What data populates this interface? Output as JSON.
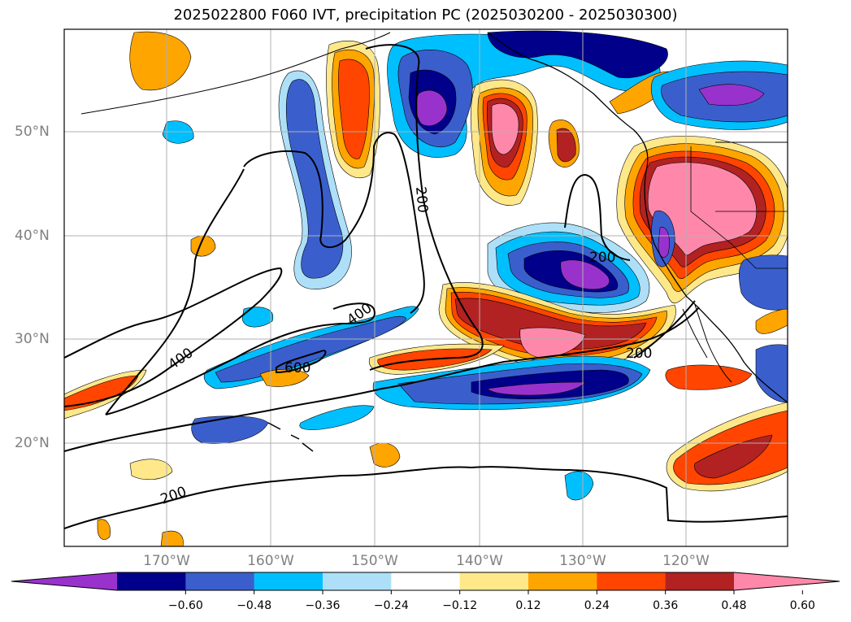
{
  "title": "2025022800 F060 IVT, precipitation PC (2025030200 - 2025030300)",
  "lat_labels": [
    "50°N",
    "40°N",
    "30°N",
    "20°N"
  ],
  "lon_labels": [
    "170°W",
    "160°W",
    "150°W",
    "140°W",
    "130°W",
    "120°W"
  ],
  "contour_labels": [
    "200",
    "200",
    "200",
    "200",
    "400",
    "400",
    "600"
  ],
  "colorbar": {
    "ticks": [
      "−0.60",
      "−0.48",
      "−0.36",
      "−0.24",
      "−0.12",
      "0.12",
      "0.24",
      "0.36",
      "0.48",
      "0.60"
    ],
    "colors": [
      "#9932CC",
      "#00008B",
      "#3A5FCD",
      "#00BFFF",
      "#ADE0F8",
      "#FFFFFF",
      "#FFE88A",
      "#FFA500",
      "#FF4500",
      "#B22222",
      "#FF88AA"
    ]
  },
  "colors": {
    "purple": "#9932CC",
    "navy": "#00008B",
    "blue": "#3A5FCD",
    "cyan": "#00BFFF",
    "lightblue": "#ADE0F8",
    "yellow": "#FFE88A",
    "orange": "#FFA500",
    "redorange": "#FF4500",
    "darkred": "#B22222",
    "pink": "#FF88AA"
  }
}
